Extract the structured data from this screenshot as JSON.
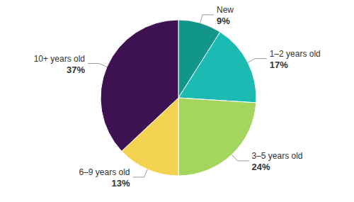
{
  "chart_data": {
    "type": "pie",
    "categories": [
      "New",
      "1–2 years old",
      "3–5 years old",
      "6–9 years old",
      "10+ years old"
    ],
    "values": [
      9,
      17,
      24,
      13,
      37
    ],
    "value_labels": [
      "9%",
      "17%",
      "24%",
      "13%",
      "37%"
    ],
    "colors": [
      "#12968a",
      "#1bbab3",
      "#a4d65e",
      "#f2d250",
      "#3e1150"
    ],
    "data_labels": true
  }
}
